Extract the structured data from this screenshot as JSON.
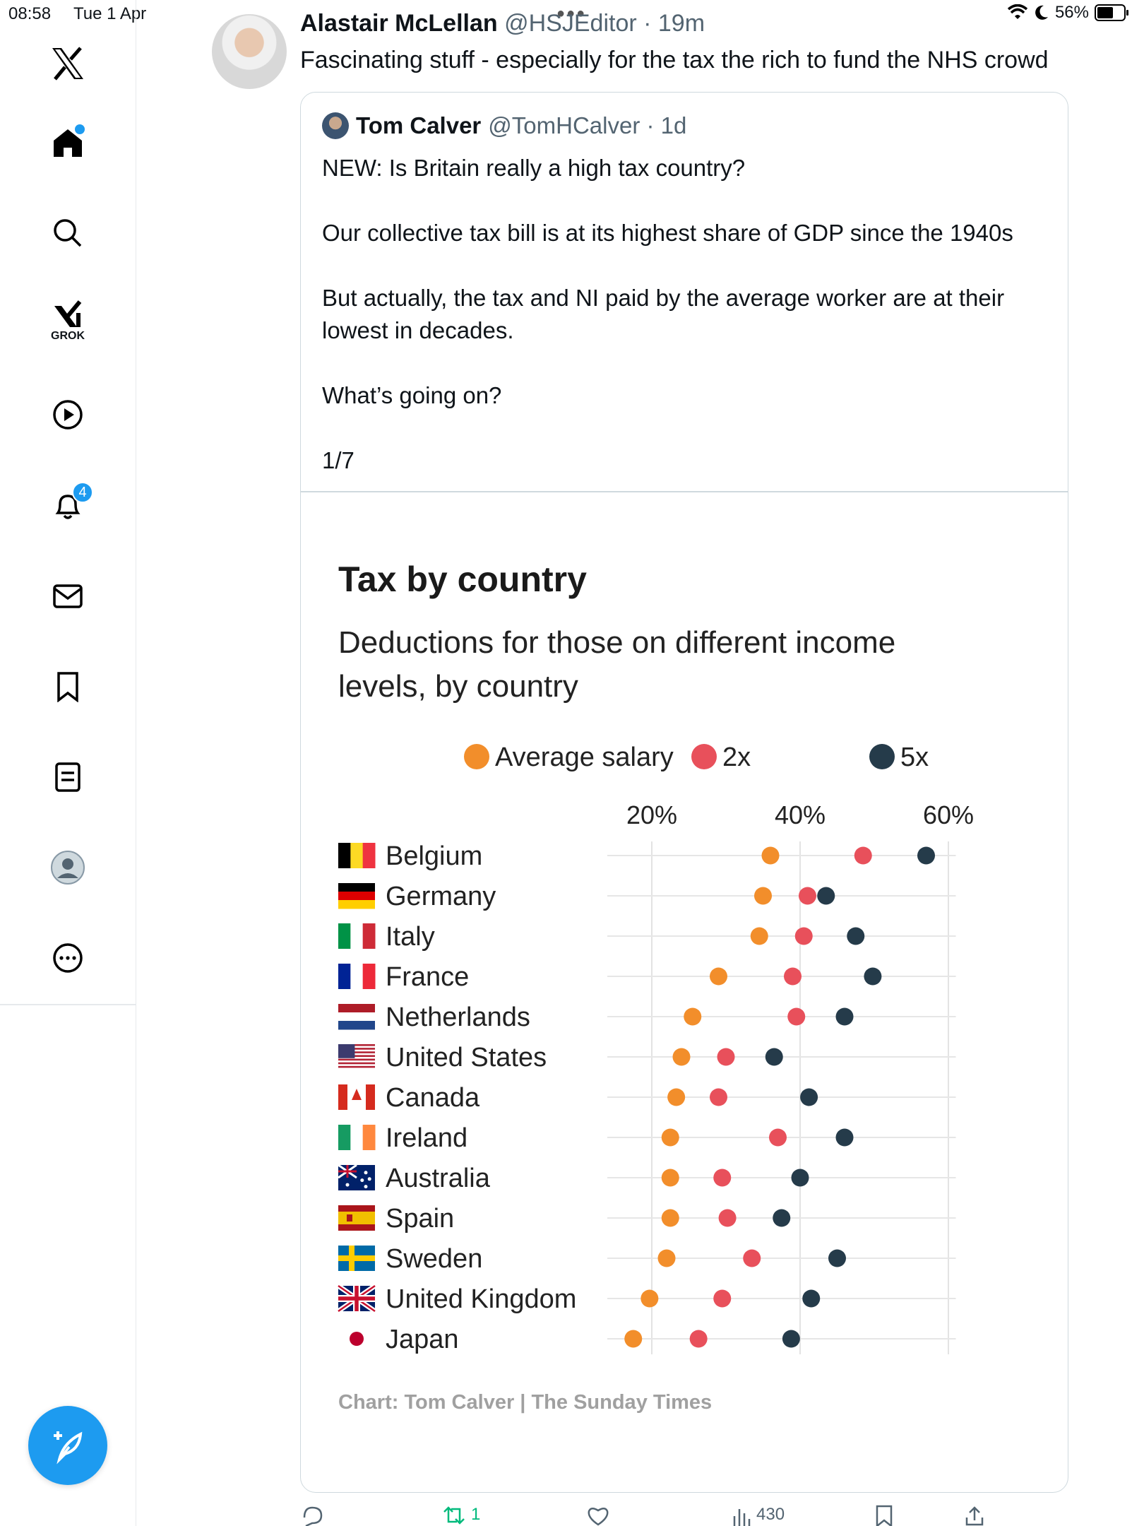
{
  "status_bar": {
    "time": "08:58",
    "date": "Tue 1 Apr",
    "battery": "56%"
  },
  "sidebar": {
    "items": [
      {
        "name": "logo"
      },
      {
        "name": "home"
      },
      {
        "name": "search"
      },
      {
        "name": "grok",
        "label": "GROK"
      },
      {
        "name": "video"
      },
      {
        "name": "notifications",
        "badge": "4"
      },
      {
        "name": "messages"
      },
      {
        "name": "bookmarks"
      },
      {
        "name": "lists"
      },
      {
        "name": "profile"
      },
      {
        "name": "more"
      }
    ]
  },
  "tweet": {
    "author_name": "Alastair McLellan",
    "author_meta": "@HSJEditor · 19m",
    "text": "Fascinating stuff - especially for the tax the rich to fund the NHS crowd"
  },
  "quote": {
    "author_name": "Tom Calver",
    "author_meta": "@TomHCalver · 1d",
    "lines": [
      "NEW: Is Britain really a high tax country?",
      "Our collective tax bill is at its highest share of GDP since the 1940s",
      "But actually, the tax and NI paid by the average worker are at their",
      "lowest in decades.",
      "What’s going on?",
      "1/7"
    ]
  },
  "chart_data": {
    "type": "scatter",
    "title": "Tax by country",
    "subtitle_lines": [
      "Deductions for those on different income",
      "levels, by country"
    ],
    "x_ticks": [
      "20%",
      "40%",
      "60%"
    ],
    "x_tick_values": [
      20,
      40,
      60
    ],
    "xlim": [
      14,
      61
    ],
    "grid": true,
    "legend_position": "top",
    "source": "Chart: Tom Calver | The Sunday Times",
    "categories": [
      "Belgium",
      "Germany",
      "Italy",
      "France",
      "Netherlands",
      "United States",
      "Canada",
      "Ireland",
      "Australia",
      "Spain",
      "Sweden",
      "United Kingdom",
      "Japan"
    ],
    "series": [
      {
        "name": "Average salary",
        "color": "#f28e2b",
        "values": [
          36,
          35,
          34.5,
          29,
          25.5,
          24,
          23.3,
          22.5,
          22.5,
          22.5,
          22,
          19.7,
          17.5
        ]
      },
      {
        "name": "2x",
        "color": "#e8505b",
        "values": [
          48.5,
          41,
          40.5,
          39,
          39.5,
          30,
          29,
          37,
          29.5,
          30.2,
          33.5,
          29.5,
          26.3
        ]
      },
      {
        "name": "5x",
        "color": "#253b4a",
        "values": [
          57,
          43.5,
          47.5,
          49.8,
          46,
          36.5,
          41.2,
          46,
          40,
          37.5,
          45,
          41.5,
          38.8
        ]
      }
    ]
  },
  "actions": {
    "retweets": "1",
    "views": "430"
  }
}
